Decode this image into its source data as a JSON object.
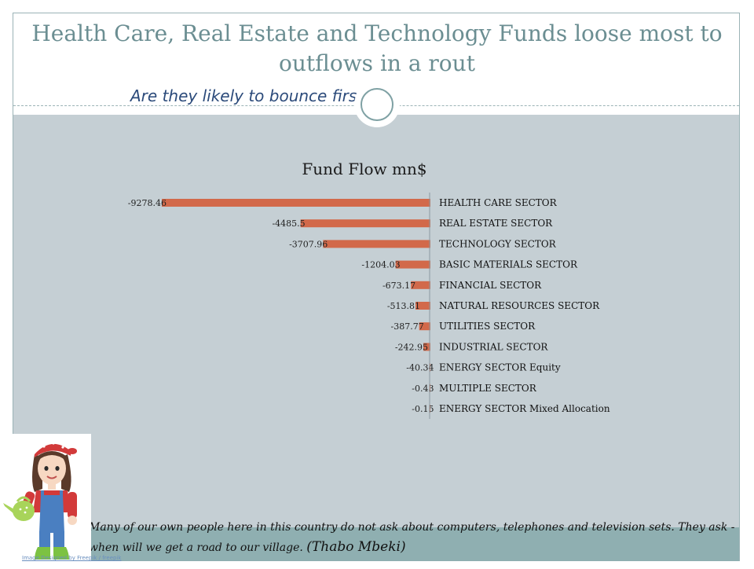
{
  "slide": {
    "title": "Health Care, Real Estate and Technology Funds loose most to outflows in a rout",
    "subtitle": "Are they likely to bounce first?",
    "quote_text": "Many of our own people here in this country do not ask about computers, telephones and television sets. They ask - when will we get a road to our village.",
    "quote_author": "(Thabo Mbeki)",
    "image_credit": "Image Designed by Freepik / freepik"
  },
  "colors": {
    "bar": "#d2694a",
    "panel": "#c5cfd4",
    "title": "#6b8e92",
    "quote_band": "#8fafb1"
  },
  "illustration_icon": "gardener-girl-with-watering-can-icon",
  "chart_data": {
    "type": "bar",
    "orientation": "horizontal",
    "title": "Fund Flow mn$",
    "xlabel": "",
    "ylabel": "",
    "xlim": [
      -9278.46,
      0
    ],
    "grid": false,
    "legend": "none",
    "categories": [
      "HEALTH CARE SECTOR",
      "REAL ESTATE SECTOR",
      "TECHNOLOGY SECTOR",
      "BASIC MATERIALS SECTOR",
      "FINANCIAL SECTOR",
      "NATURAL RESOURCES SECTOR",
      "UTILITIES SECTOR",
      "INDUSTRIAL SECTOR",
      "ENERGY SECTOR Equity",
      "MULTIPLE SECTOR",
      "ENERGY SECTOR Mixed Allocation"
    ],
    "values": [
      -9278.46,
      -4485.5,
      -3707.96,
      -1204.03,
      -673.17,
      -513.81,
      -387.77,
      -242.95,
      -40.34,
      -0.43,
      -0.15
    ],
    "data_labels": [
      "-9278.46",
      "-4485.5",
      "-3707.96",
      "-1204.03",
      "-673.17",
      "-513.81",
      "-387.77",
      "-242.95",
      "-40.34",
      "-0.43",
      "-0.15"
    ]
  }
}
